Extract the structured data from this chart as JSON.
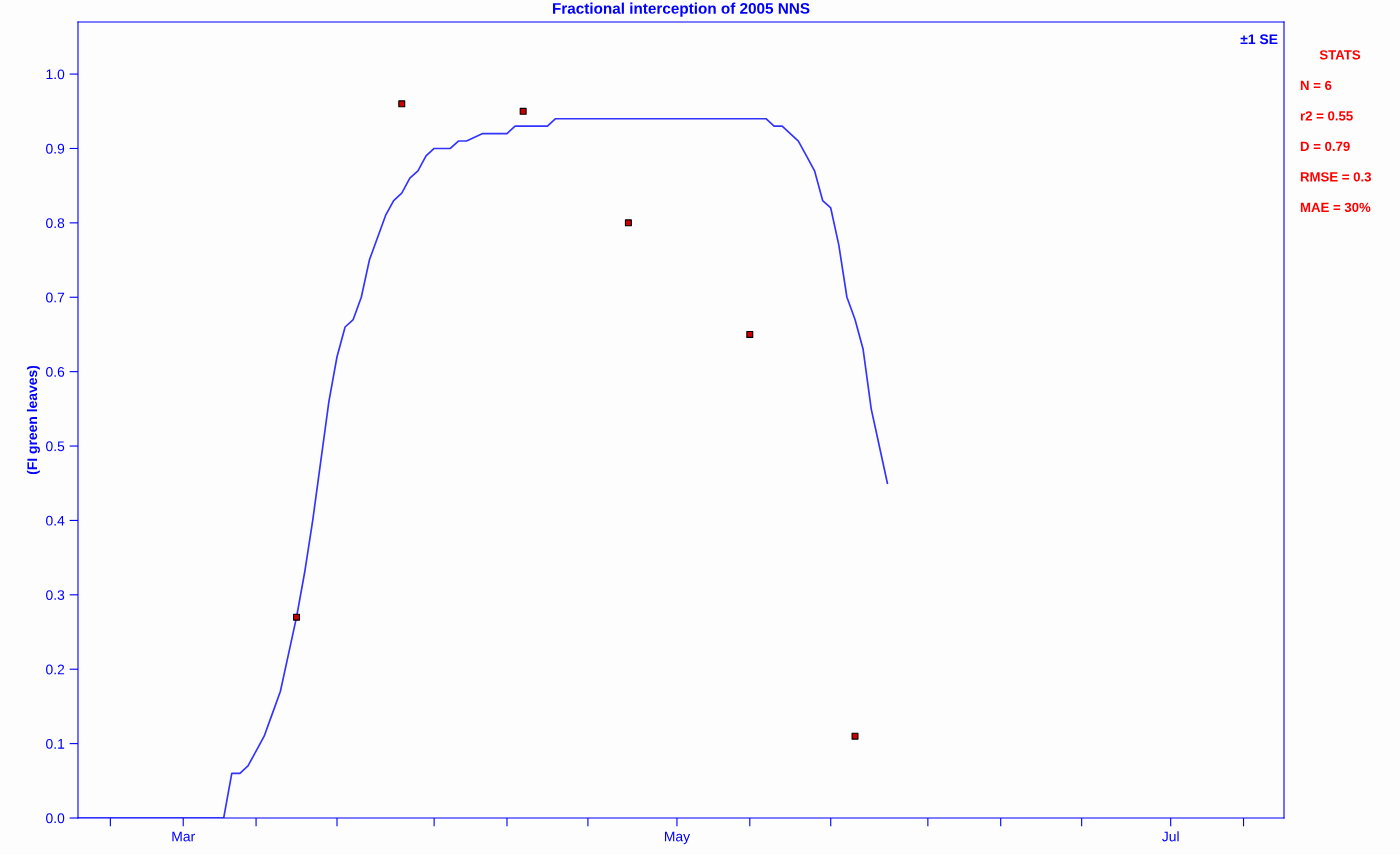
{
  "chart_data": {
    "type": "line",
    "title": "Fractional interception of 2005 NNS",
    "ylabel": "(FI green leaves)",
    "xlim": [
      "2005-02-16",
      "2005-07-15"
    ],
    "ylim": [
      0,
      1.07
    ],
    "xticks": [
      {
        "value": "2005-02-20",
        "label": null
      },
      {
        "value": "2005-03-01",
        "label": "Mar"
      },
      {
        "value": "2005-03-10",
        "label": null
      },
      {
        "value": "2005-03-20",
        "label": null
      },
      {
        "value": "2005-04-01",
        "label": null
      },
      {
        "value": "2005-04-10",
        "label": null
      },
      {
        "value": "2005-04-20",
        "label": null
      },
      {
        "value": "2005-05-01",
        "label": "May"
      },
      {
        "value": "2005-05-10",
        "label": null
      },
      {
        "value": "2005-05-20",
        "label": null
      },
      {
        "value": "2005-06-01",
        "label": null
      },
      {
        "value": "2005-06-10",
        "label": null
      },
      {
        "value": "2005-06-20",
        "label": null
      },
      {
        "value": "2005-07-01",
        "label": "Jul"
      },
      {
        "value": "2005-07-10",
        "label": null
      }
    ],
    "yticks": [
      {
        "value": 0,
        "label": "0.0"
      },
      {
        "value": 0.1,
        "label": "0.1"
      },
      {
        "value": 0.2,
        "label": "0.2"
      },
      {
        "value": 0.3,
        "label": "0.3"
      },
      {
        "value": 0.4,
        "label": "0.4"
      },
      {
        "value": 0.5,
        "label": "0.5"
      },
      {
        "value": 0.6,
        "label": "0.6"
      },
      {
        "value": 0.7,
        "label": "0.7"
      },
      {
        "value": 0.8,
        "label": "0.8"
      },
      {
        "value": 0.9,
        "label": "0.9"
      },
      {
        "value": 1.0,
        "label": "1.0"
      }
    ],
    "grid": false,
    "legend": false,
    "series": [
      {
        "color": "#3333ff",
        "marker": "none",
        "line_style": "solid",
        "x": [
          "2005-02-16",
          "2005-03-06",
          "2005-03-07",
          "2005-03-08",
          "2005-03-09",
          "2005-03-10",
          "2005-03-11",
          "2005-03-12",
          "2005-03-13",
          "2005-03-14",
          "2005-03-15",
          "2005-03-16",
          "2005-03-17",
          "2005-03-18",
          "2005-03-19",
          "2005-03-20",
          "2005-03-21",
          "2005-03-22",
          "2005-03-23",
          "2005-03-24",
          "2005-03-25",
          "2005-03-26",
          "2005-03-27",
          "2005-03-28",
          "2005-03-29",
          "2005-03-30",
          "2005-03-31",
          "2005-04-01",
          "2005-04-03",
          "2005-04-04",
          "2005-04-05",
          "2005-04-07",
          "2005-04-10",
          "2005-04-11",
          "2005-04-15",
          "2005-04-16",
          "2005-05-12",
          "2005-05-13",
          "2005-05-14",
          "2005-05-15",
          "2005-05-16",
          "2005-05-17",
          "2005-05-18",
          "2005-05-19",
          "2005-05-20",
          "2005-05-21",
          "2005-05-22",
          "2005-05-23",
          "2005-05-24",
          "2005-05-25",
          "2005-05-26",
          "2005-05-27"
        ],
        "values": [
          0,
          0,
          0.06,
          0.06,
          0.07,
          0.09,
          0.11,
          0.14,
          0.17,
          0.22,
          0.27,
          0.33,
          0.4,
          0.48,
          0.56,
          0.62,
          0.66,
          0.67,
          0.7,
          0.75,
          0.78,
          0.81,
          0.83,
          0.84,
          0.86,
          0.87,
          0.89,
          0.9,
          0.9,
          0.91,
          0.91,
          0.92,
          0.92,
          0.93,
          0.93,
          0.94,
          0.94,
          0.93,
          0.93,
          0.92,
          0.91,
          0.89,
          0.87,
          0.83,
          0.82,
          0.77,
          0.7,
          0.67,
          0.63,
          0.55,
          0.5,
          0.45
        ]
      },
      {
        "type": "scatter",
        "color": "#cc0000",
        "marker": "square",
        "x": [
          "2005-03-15",
          "2005-03-28",
          "2005-04-12",
          "2005-04-25",
          "2005-05-10",
          "2005-05-23"
        ],
        "values": [
          0.27,
          0.96,
          0.95,
          0.8,
          0.65,
          0.11
        ]
      }
    ],
    "annotations": [
      "±1 SE",
      "STATS",
      "N = 6",
      "r2 = 0.55",
      "D = 0.79",
      "RMSE = 0.3",
      "MAE = 30%"
    ]
  }
}
